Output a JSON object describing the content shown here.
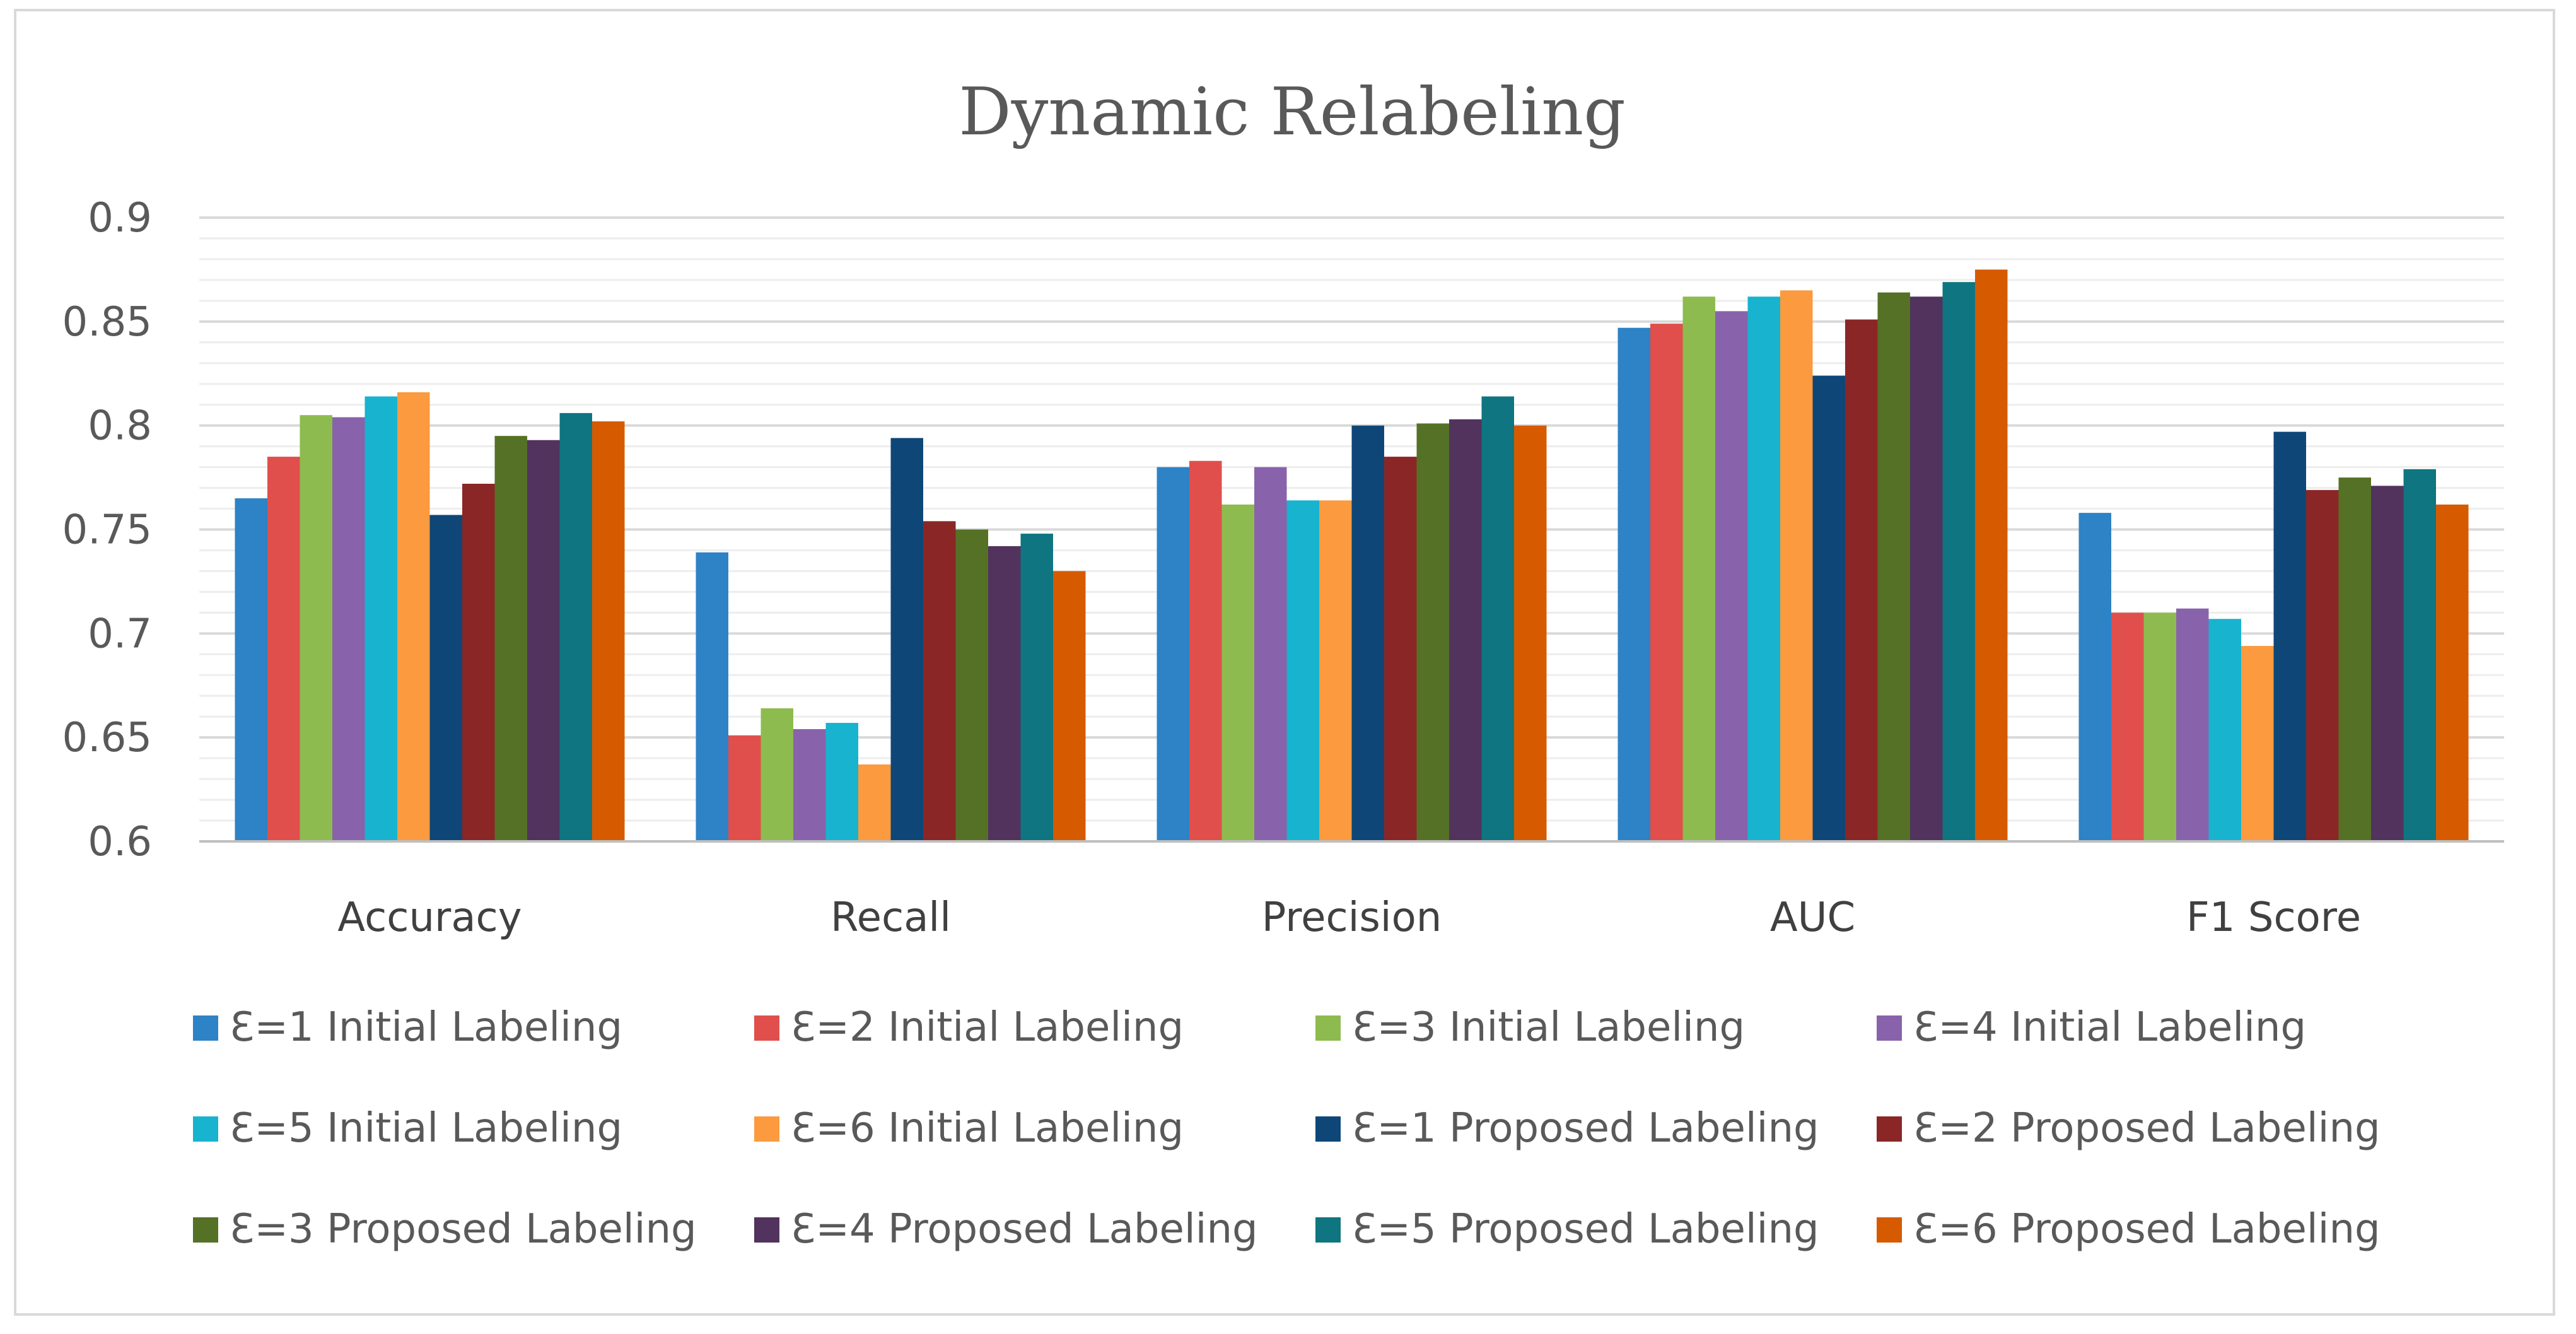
{
  "chart_data": {
    "type": "bar",
    "title": "Dynamic Relabeling",
    "xlabel": "",
    "ylabel": "",
    "ylim": [
      0.6,
      0.9
    ],
    "yticks": [
      "0.6",
      "0.65",
      "0.7",
      "0.75",
      "0.8",
      "0.85",
      "0.9"
    ],
    "ytick_values": [
      0.6,
      0.65,
      0.7,
      0.75,
      0.8,
      0.85,
      0.9
    ],
    "grid": true,
    "legend_position": "bottom",
    "categories": [
      "Accuracy",
      "Recall",
      "Precision",
      "AUC",
      "F1 Score"
    ],
    "series": [
      {
        "name": "Ɛ=1 Initial Labeling",
        "color": "#2e82c6",
        "values": [
          0.765,
          0.739,
          0.78,
          0.847,
          0.758
        ]
      },
      {
        "name": "Ɛ=2 Initial Labeling",
        "color": "#e04f4b",
        "values": [
          0.785,
          0.651,
          0.783,
          0.849,
          0.71
        ]
      },
      {
        "name": "Ɛ=3 Initial Labeling",
        "color": "#8ebb4f",
        "values": [
          0.805,
          0.664,
          0.762,
          0.862,
          0.71
        ]
      },
      {
        "name": "Ɛ=4 Initial Labeling",
        "color": "#8863ab",
        "values": [
          0.804,
          0.654,
          0.78,
          0.855,
          0.712
        ]
      },
      {
        "name": "Ɛ=5 Initial Labeling",
        "color": "#17b3cf",
        "values": [
          0.814,
          0.657,
          0.764,
          0.862,
          0.707
        ]
      },
      {
        "name": "Ɛ=6 Initial Labeling",
        "color": "#fb9a3e",
        "values": [
          0.816,
          0.637,
          0.764,
          0.865,
          0.694
        ]
      },
      {
        "name": "Ɛ=1 Proposed Labeling",
        "color": "#0e4777",
        "values": [
          0.757,
          0.794,
          0.8,
          0.824,
          0.797
        ]
      },
      {
        "name": "Ɛ=2 Proposed Labeling",
        "color": "#8b2626",
        "values": [
          0.772,
          0.754,
          0.785,
          0.851,
          0.769
        ]
      },
      {
        "name": "Ɛ=3 Proposed Labeling",
        "color": "#557126",
        "values": [
          0.795,
          0.75,
          0.801,
          0.864,
          0.775
        ]
      },
      {
        "name": "Ɛ=4 Proposed Labeling",
        "color": "#51335e",
        "values": [
          0.793,
          0.742,
          0.803,
          0.862,
          0.771
        ]
      },
      {
        "name": "Ɛ=5 Proposed Labeling",
        "color": "#0f7580",
        "values": [
          0.806,
          0.748,
          0.814,
          0.869,
          0.779
        ]
      },
      {
        "name": "Ɛ=6 Proposed Labeling",
        "color": "#d65a00",
        "values": [
          0.802,
          0.73,
          0.8,
          0.875,
          0.762
        ]
      }
    ]
  }
}
